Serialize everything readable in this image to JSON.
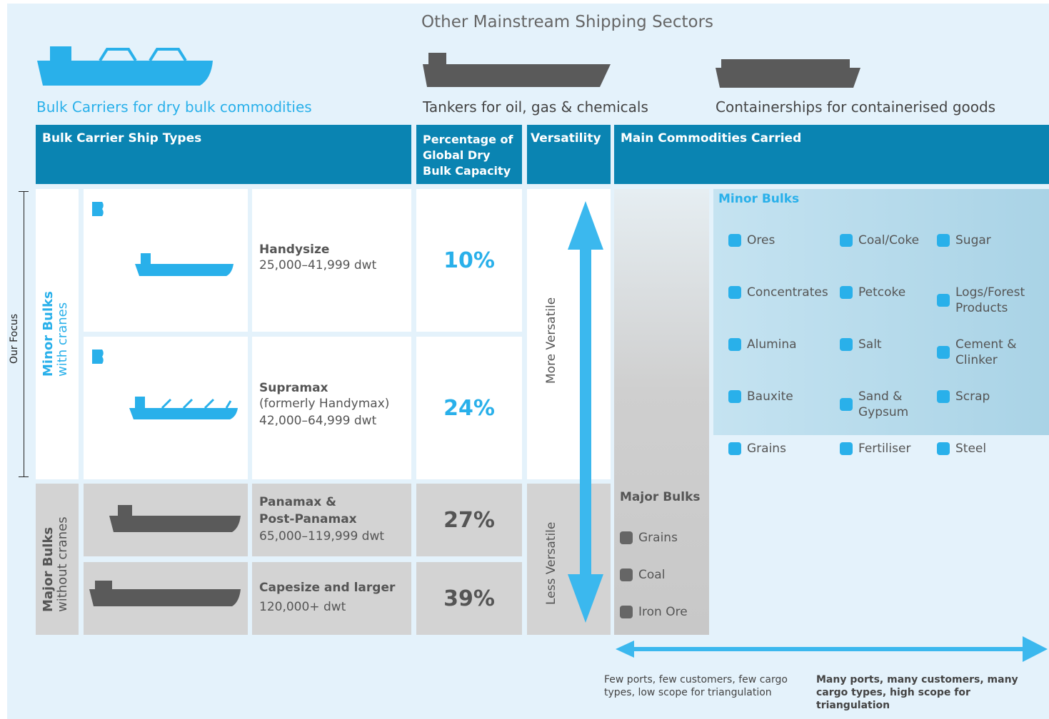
{
  "header": {
    "title": "Other Mainstream Shipping Sectors",
    "sectors": [
      "Bulk Carriers for dry bulk commodities",
      "Tankers for oil, gas & chemicals",
      "Containerships for containerised goods"
    ]
  },
  "table": {
    "columns": [
      "Bulk Carrier Ship Types",
      "Percentage of Global Dry Bulk Capacity",
      "Versatility",
      "Main Commodities Carried"
    ],
    "focus": "Our Focus",
    "groups": [
      {
        "name": "Minor Bulks",
        "sub": "with cranes"
      },
      {
        "name": "Major Bulks",
        "sub": "without cranes"
      }
    ],
    "rows": [
      {
        "name": "Handysize",
        "detail": [
          "25,000–41,999 dwt"
        ],
        "share": "10%"
      },
      {
        "name": "Supramax",
        "detail": [
          "(formerly Handymax)",
          "42,000–64,999 dwt"
        ],
        "share": "24%"
      },
      {
        "name": "Panamax & Post-Panamax",
        "detail": [
          "65,000–119,999 dwt"
        ],
        "share": "27%"
      },
      {
        "name": "Capesize and larger",
        "detail": [
          "120,000+ dwt"
        ],
        "share": "39%"
      }
    ],
    "versatility": [
      "More Versatile",
      "Less Versatile"
    ]
  },
  "commodities": {
    "minor": {
      "title": "Minor Bulks",
      "items": [
        "Ores",
        "Coal/Coke",
        "Sugar",
        "Concentrates",
        "Petcoke",
        "Logs/Forest Products",
        "Alumina",
        "Salt",
        "Cement & Clinker",
        "Bauxite",
        "Sand & Gypsum",
        "Scrap",
        "Grains",
        "Fertiliser",
        "Steel"
      ]
    },
    "major": {
      "title": "Major Bulks",
      "items": [
        "Grains",
        "Coal",
        "Iron Ore"
      ]
    }
  },
  "footer": {
    "left": "Few ports, few customers, few cargo types, low scope for triangulation",
    "right": "Many ports, many customers, many cargo types, high scope for triangulation"
  }
}
